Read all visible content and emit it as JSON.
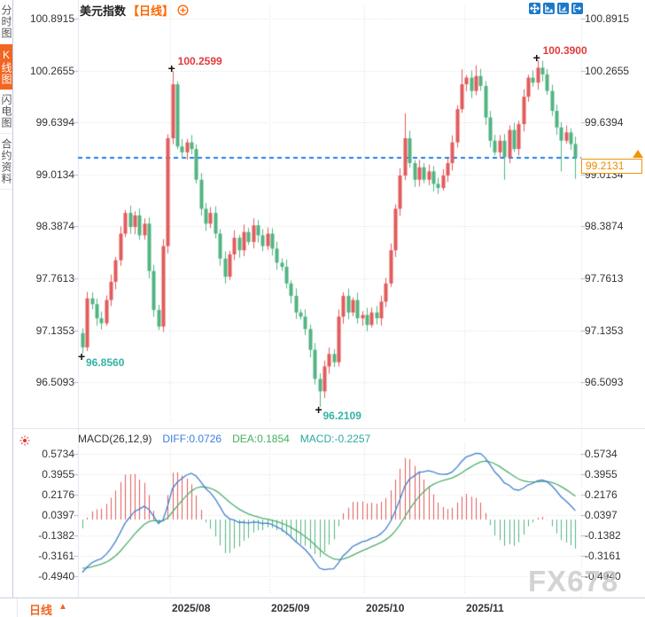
{
  "sidebar": {
    "items": [
      {
        "label": "分时图",
        "active": false
      },
      {
        "label": "K线图",
        "active": true
      },
      {
        "label": "闪电图",
        "active": false
      },
      {
        "label": "合约资料",
        "active": false
      }
    ]
  },
  "header": {
    "title": "美元指数",
    "period_tag": "【日线】"
  },
  "price_panel": {
    "axis_labels": [
      "100.8915",
      "100.2655",
      "99.6394",
      "99.0134",
      "98.3874",
      "97.7613",
      "97.1353",
      "96.5093"
    ],
    "current_price": "99.2131",
    "cross_marker": "+",
    "annotations": {
      "high1": "100.2599",
      "high2": "100.3900",
      "low1": "96.8560",
      "low2": "96.2109"
    }
  },
  "macd_panel": {
    "title": "MACD(26,12,9)",
    "diff_label": "DIFF:0.0726",
    "dea_label": "DEA:0.1854",
    "macd_label": "MACD:-0.2257",
    "axis_labels": [
      "0.5734",
      "0.3955",
      "0.2176",
      "0.0397",
      "-0.1382",
      "-0.3161",
      "-0.4940"
    ]
  },
  "bottom_bar": {
    "period_label": "日线",
    "period_caret": "▲",
    "x_labels": [
      "2025/08",
      "2025/09",
      "2025/10",
      "2025/11"
    ]
  },
  "watermark": "FX678",
  "colors": {
    "up": "#e25b5b",
    "down": "#52b483",
    "diff_line": "#4080d0",
    "dea_line": "#4cae6e",
    "dashed_line": "#1e7ef0",
    "grid": "#d9d9d9",
    "accent_orange": "#f26522",
    "badge_orange": "#f0940a",
    "toolbar_blue": "#1b79c9",
    "annotation_high": "#e23b3b",
    "annotation_low": "#35b3a6"
  },
  "chart_data": {
    "type": "candlestick+macd",
    "title": "美元指数",
    "interval": "日线",
    "price_axis": {
      "top": 100.8915,
      "step": 0.62603,
      "ticks": [
        100.8915,
        100.2655,
        99.6394,
        99.0134,
        98.3874,
        97.7613,
        97.1353,
        96.5093
      ]
    },
    "macd_axis": {
      "top": 0.5734,
      "step": 0.1779,
      "ticks": [
        0.5734,
        0.3955,
        0.2176,
        0.0397,
        -0.1382,
        -0.3161,
        -0.494
      ]
    },
    "month_ticks": [
      {
        "index": 19,
        "label": "2025/08"
      },
      {
        "index": 40,
        "label": "2025/09"
      },
      {
        "index": 60,
        "label": "2025/10"
      },
      {
        "index": 81,
        "label": "2025/11"
      }
    ],
    "open_first": 97.1,
    "closes": [
      96.93,
      97.52,
      97.45,
      97.28,
      97.22,
      97.5,
      97.72,
      97.98,
      98.3,
      98.55,
      98.38,
      98.52,
      98.28,
      98.42,
      97.85,
      97.38,
      97.18,
      98.15,
      99.45,
      100.1,
      99.35,
      99.28,
      99.4,
      99.32,
      98.95,
      98.6,
      98.42,
      98.55,
      98.3,
      98.0,
      97.78,
      98.05,
      98.25,
      98.1,
      98.32,
      98.2,
      98.4,
      98.28,
      98.15,
      98.3,
      98.12,
      97.95,
      97.9,
      97.7,
      97.55,
      97.35,
      97.3,
      97.15,
      96.9,
      96.55,
      96.4,
      96.7,
      96.85,
      96.75,
      97.3,
      97.55,
      97.35,
      97.5,
      97.28,
      97.32,
      97.2,
      97.35,
      97.28,
      97.48,
      97.7,
      98.1,
      98.6,
      99.0,
      99.45,
      99.15,
      98.95,
      99.1,
      98.95,
      99.05,
      98.9,
      98.85,
      99.0,
      99.15,
      99.4,
      99.8,
      100.1,
      100.18,
      100.02,
      100.2,
      100.08,
      99.7,
      99.42,
      99.28,
      99.42,
      99.22,
      99.55,
      99.32,
      99.62,
      99.95,
      100.18,
      100.12,
      100.3,
      100.22,
      100.02,
      99.78,
      99.58,
      99.42,
      99.52,
      99.38,
      99.2131
    ],
    "extremes": {
      "0": {
        "low": 96.856
      },
      "19": {
        "high": 100.2599
      },
      "50": {
        "low": 96.2109
      },
      "68": {
        "high": 99.75
      },
      "80": {
        "high": 100.28
      },
      "83": {
        "high": 100.33
      },
      "89": {
        "low": 98.95
      },
      "96": {
        "high": 100.39
      },
      "101": {
        "low": 99.05
      },
      "104": {
        "low": 98.96
      }
    },
    "annotations": [
      {
        "index": 0,
        "price": 96.856,
        "kind": "low",
        "key": "low1"
      },
      {
        "index": 19,
        "price": 100.2599,
        "kind": "high",
        "key": "high1"
      },
      {
        "index": 50,
        "price": 96.2109,
        "kind": "low",
        "key": "low2"
      },
      {
        "index": 96,
        "price": 100.39,
        "kind": "high",
        "key": "high2"
      }
    ],
    "current_price": 99.2131,
    "indicator": {
      "name": "MACD(26,12,9)",
      "diff": 0.0726,
      "dea": 0.1854,
      "macd": -0.2257
    },
    "macd_prehistory_closes": [
      99.3,
      99.22,
      99.14,
      99.06,
      98.98,
      98.9,
      98.82,
      98.74,
      98.66,
      98.58,
      98.5,
      98.42,
      98.34,
      98.26,
      98.18,
      98.1,
      98.02,
      97.94,
      97.86,
      97.78,
      97.7,
      97.62,
      97.54,
      97.46,
      97.38,
      97.3,
      97.22,
      97.14,
      97.06,
      96.98
    ]
  }
}
